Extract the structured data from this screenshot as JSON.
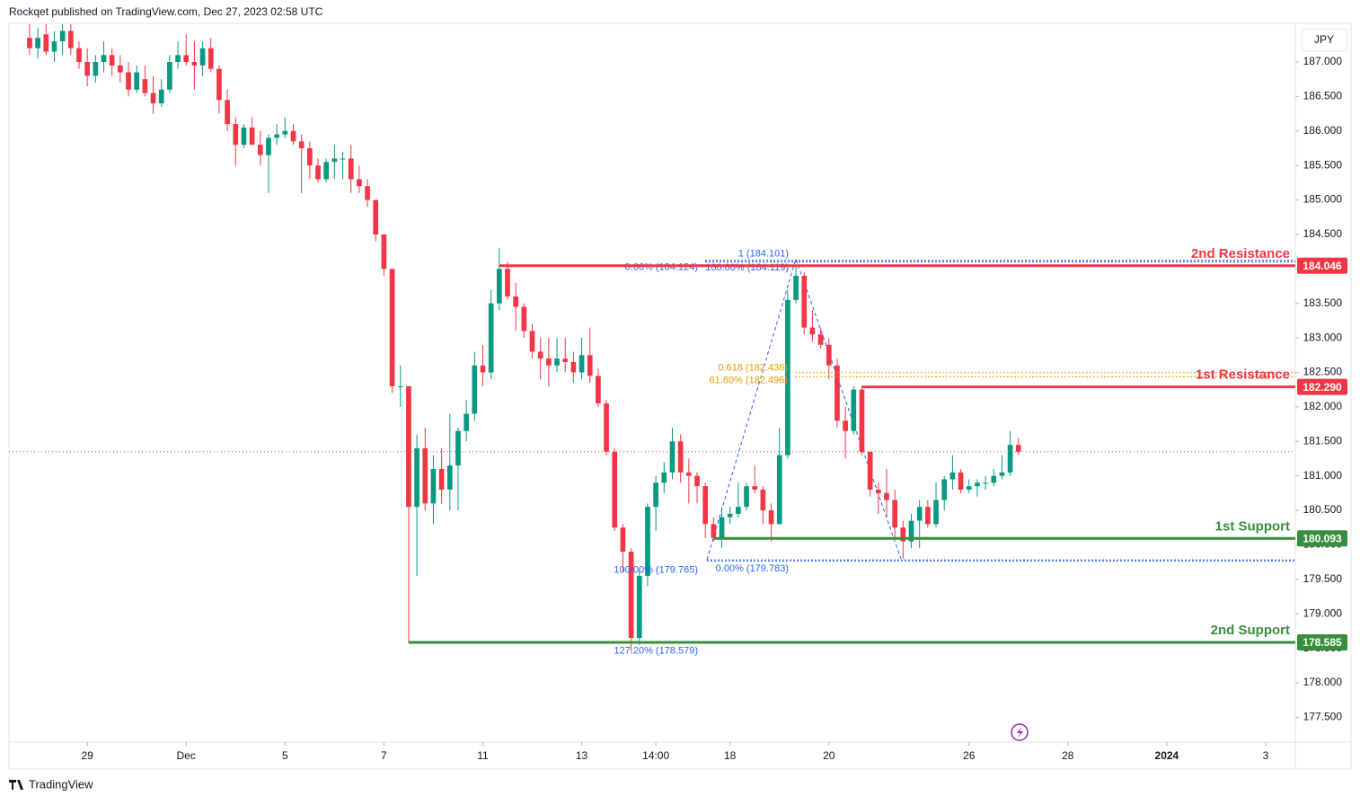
{
  "header": "Rockqet published on TradingView.com, Dec 27, 2023 02:58 UTC",
  "currency": "JPY",
  "logo": "TradingView",
  "chart_data": {
    "type": "candlestick",
    "xlim": [
      -2.5,
      153.6
    ],
    "ylim": [
      177.14,
      187.56
    ],
    "xticks": [
      {
        "value": 7,
        "label": "29"
      },
      {
        "value": 19,
        "label": "Dec"
      },
      {
        "value": 31,
        "label": "5"
      },
      {
        "value": 43,
        "label": "7"
      },
      {
        "value": 55,
        "label": "11"
      },
      {
        "value": 67,
        "label": "13"
      },
      {
        "value": 76,
        "label": "14:00"
      },
      {
        "value": 85,
        "label": "18"
      },
      {
        "value": 97,
        "label": "20"
      },
      {
        "value": 114,
        "label": "26"
      },
      {
        "value": 126,
        "label": "28"
      },
      {
        "value": 138,
        "label": "2024"
      },
      {
        "value": 150,
        "label": "3"
      }
    ],
    "yticks": [
      {
        "value": 177.5,
        "label": "177.500"
      },
      {
        "value": 178,
        "label": "178.000"
      },
      {
        "value": 178.5,
        "label": "178.500"
      },
      {
        "value": 179,
        "label": "179.000"
      },
      {
        "value": 179.5,
        "label": "179.500"
      },
      {
        "value": 180,
        "label": "180.000"
      },
      {
        "value": 180.5,
        "label": "180.500"
      },
      {
        "value": 181,
        "label": "181.000"
      },
      {
        "value": 181.5,
        "label": "181.500"
      },
      {
        "value": 182,
        "label": "182.000"
      },
      {
        "value": 182.5,
        "label": "182.500"
      },
      {
        "value": 183,
        "label": "183.000"
      },
      {
        "value": 183.5,
        "label": "183.500"
      },
      {
        "value": 184,
        "label": "184.000"
      },
      {
        "value": 184.5,
        "label": "184.500"
      },
      {
        "value": 185,
        "label": "185.000"
      },
      {
        "value": 185.5,
        "label": "185.500"
      },
      {
        "value": 186,
        "label": "186.000"
      },
      {
        "value": 186.5,
        "label": "186.500"
      },
      {
        "value": 187,
        "label": "187.000"
      }
    ],
    "up_color": "#089981",
    "down_color": "#f23645",
    "open": [
      187.35,
      187.2,
      187.4,
      187.15,
      187.3,
      187.45,
      187.2,
      187.0,
      186.8,
      187.0,
      187.1,
      186.95,
      186.85,
      186.6,
      186.75,
      186.55,
      186.4,
      186.6,
      187.0,
      187.1,
      187.0,
      186.95,
      187.2,
      186.9,
      186.45,
      186.1,
      185.8,
      186.05,
      185.8,
      185.65,
      185.9,
      185.95,
      186.0,
      185.85,
      185.75,
      185.5,
      185.3,
      185.55,
      185.6,
      185.6,
      185.3,
      185.2,
      185.0,
      184.5,
      184.0,
      182.3,
      182.3,
      180.55,
      181.4,
      180.6,
      181.1,
      180.8,
      181.15,
      181.65,
      181.9,
      182.6,
      182.5,
      183.5,
      184.0,
      183.6,
      183.45,
      183.1,
      182.8,
      182.7,
      182.6,
      182.7,
      182.65,
      182.5,
      182.75,
      182.45,
      182.05,
      181.35,
      180.25,
      179.9,
      178.65,
      179.55,
      180.55,
      180.9,
      181.05,
      181.5,
      181.05,
      181.0,
      180.85,
      180.3,
      180.1,
      180.4,
      180.45,
      180.55,
      180.85,
      180.8,
      180.5,
      180.3,
      181.3,
      183.55,
      183.9,
      183.15,
      183.05,
      182.9,
      182.6,
      181.8,
      181.65,
      182.25,
      181.35,
      180.8,
      180.75,
      180.65,
      180.25,
      180.05,
      180.35,
      180.55,
      180.3,
      180.65,
      180.95,
      181.05,
      180.8,
      180.85,
      180.9,
      180.9,
      181.0,
      181.05,
      181.45
    ],
    "high": [
      187.6,
      187.5,
      187.6,
      187.45,
      187.55,
      187.55,
      187.3,
      187.2,
      187.1,
      187.3,
      187.2,
      187.1,
      187.0,
      186.95,
      186.95,
      186.8,
      186.75,
      187.1,
      187.3,
      187.4,
      187.3,
      187.3,
      187.35,
      186.95,
      186.6,
      186.2,
      186.1,
      186.2,
      186.0,
      185.95,
      186.1,
      186.2,
      186.1,
      185.95,
      185.85,
      185.6,
      185.6,
      185.8,
      185.7,
      185.8,
      185.5,
      185.3,
      185.0,
      184.5,
      184.0,
      182.6,
      182.3,
      181.6,
      181.7,
      181.3,
      181.4,
      181.9,
      181.7,
      182.1,
      182.8,
      182.9,
      183.7,
      184.3,
      184.1,
      183.8,
      183.5,
      183.2,
      183.0,
      183.0,
      183.0,
      183.0,
      182.8,
      183.0,
      183.15,
      182.55,
      182.1,
      181.4,
      180.3,
      179.95,
      179.65,
      180.6,
      181.0,
      181.2,
      181.7,
      181.6,
      181.25,
      181.05,
      180.9,
      180.4,
      180.55,
      180.55,
      180.9,
      180.9,
      181.15,
      180.85,
      180.6,
      181.7,
      183.7,
      184.05,
      183.95,
      183.4,
      183.15,
      183.0,
      182.7,
      182.0,
      182.3,
      182.3,
      181.35,
      180.9,
      181.1,
      180.8,
      180.35,
      180.45,
      180.65,
      180.65,
      180.9,
      181.0,
      181.3,
      181.1,
      180.95,
      180.95,
      181.0,
      181.1,
      181.3,
      181.65,
      181.55
    ],
    "low": [
      187.1,
      187.05,
      187.1,
      187.0,
      187.1,
      187.1,
      186.9,
      186.65,
      186.7,
      186.85,
      186.8,
      186.7,
      186.5,
      186.55,
      186.5,
      186.25,
      186.35,
      186.55,
      186.9,
      186.95,
      186.6,
      186.8,
      186.85,
      186.25,
      186.0,
      185.5,
      185.75,
      185.85,
      185.5,
      185.1,
      185.8,
      185.9,
      185.8,
      185.1,
      185.3,
      185.25,
      185.25,
      185.3,
      185.3,
      185.1,
      185.1,
      184.9,
      184.4,
      183.9,
      182.2,
      182.0,
      178.58,
      179.55,
      180.5,
      180.3,
      180.6,
      180.5,
      180.5,
      181.5,
      181.8,
      182.3,
      182.4,
      183.4,
      183.55,
      183.1,
      183.0,
      182.7,
      182.4,
      182.3,
      182.5,
      182.5,
      182.35,
      182.4,
      182.35,
      182.0,
      181.3,
      180.2,
      179.6,
      178.45,
      178.55,
      179.4,
      180.2,
      180.75,
      180.95,
      180.9,
      180.6,
      180.6,
      180.1,
      180.05,
      179.95,
      180.3,
      180.4,
      180.5,
      180.75,
      180.3,
      180.05,
      180.3,
      181.25,
      183.5,
      183.05,
      182.95,
      182.85,
      182.4,
      181.7,
      181.25,
      181.6,
      181.3,
      180.7,
      180.45,
      180.4,
      180.1,
      179.8,
      179.95,
      179.95,
      180.25,
      180.25,
      180.5,
      180.8,
      180.75,
      180.75,
      180.7,
      180.8,
      180.85,
      180.95,
      181.0,
      181.3
    ],
    "close": [
      187.2,
      187.35,
      187.15,
      187.3,
      187.45,
      187.2,
      187.0,
      186.8,
      187.0,
      187.1,
      186.95,
      186.85,
      186.6,
      186.85,
      186.55,
      186.4,
      186.6,
      187.0,
      187.1,
      187.0,
      186.95,
      187.2,
      186.9,
      186.45,
      186.1,
      185.8,
      186.05,
      185.8,
      185.65,
      185.9,
      185.95,
      186.0,
      185.85,
      185.75,
      185.5,
      185.3,
      185.55,
      185.6,
      185.6,
      185.3,
      185.2,
      185.0,
      184.5,
      184.0,
      182.3,
      182.3,
      180.55,
      181.4,
      180.6,
      181.1,
      180.8,
      181.15,
      181.65,
      181.9,
      182.6,
      182.5,
      183.5,
      184.0,
      183.6,
      183.45,
      183.1,
      182.8,
      182.7,
      182.6,
      182.7,
      182.65,
      182.5,
      182.75,
      182.45,
      182.05,
      181.35,
      180.25,
      179.9,
      178.65,
      179.55,
      180.55,
      180.9,
      181.05,
      181.5,
      181.05,
      181.0,
      180.85,
      180.3,
      180.1,
      180.4,
      180.45,
      180.55,
      180.85,
      180.8,
      180.5,
      180.3,
      181.3,
      183.55,
      183.9,
      183.15,
      183.05,
      182.9,
      182.6,
      181.8,
      181.65,
      182.25,
      181.35,
      180.8,
      180.75,
      180.65,
      180.25,
      180.05,
      180.35,
      180.55,
      180.3,
      180.65,
      180.95,
      181.05,
      180.8,
      180.85,
      180.9,
      180.9,
      181.0,
      181.05,
      181.45,
      181.35
    ],
    "levels": [
      {
        "name": "2nd Resistance",
        "value": 184.046,
        "label": "184.046",
        "color": "#f23645",
        "from": 57
      },
      {
        "name": "1st Resistance",
        "value": 182.29,
        "label": "182.290",
        "color": "#f23645",
        "from": 101
      },
      {
        "name": "1st Support",
        "value": 180.093,
        "label": "180.093",
        "color": "#388e3c",
        "from": 83
      },
      {
        "name": "2nd Support",
        "value": 178.585,
        "label": "178.585",
        "color": "#388e3c",
        "from": 46
      }
    ],
    "annotations": [
      {
        "text": "1 (184.101)",
        "value": 184.101,
        "color": "#2962ff"
      },
      {
        "text": "100.00% (184.119)",
        "value": 184.119,
        "color": "#2962ff"
      },
      {
        "text": "0.00% (184.124)",
        "value": 184.124,
        "color": "#2962ff"
      },
      {
        "text": "0.618 (182.436)",
        "value": 182.436,
        "color": "#e0a000"
      },
      {
        "text": "61.80% (182.496)",
        "value": 182.496,
        "color": "#e0a000"
      },
      {
        "text": "100.00% (179.765)",
        "value": 179.765,
        "color": "#2962ff"
      },
      {
        "text": "0.00% (179.783)",
        "value": 179.783,
        "color": "#2962ff"
      },
      {
        "text": "127.20% (178.579)",
        "value": 178.579,
        "color": "#2962ff"
      }
    ]
  }
}
